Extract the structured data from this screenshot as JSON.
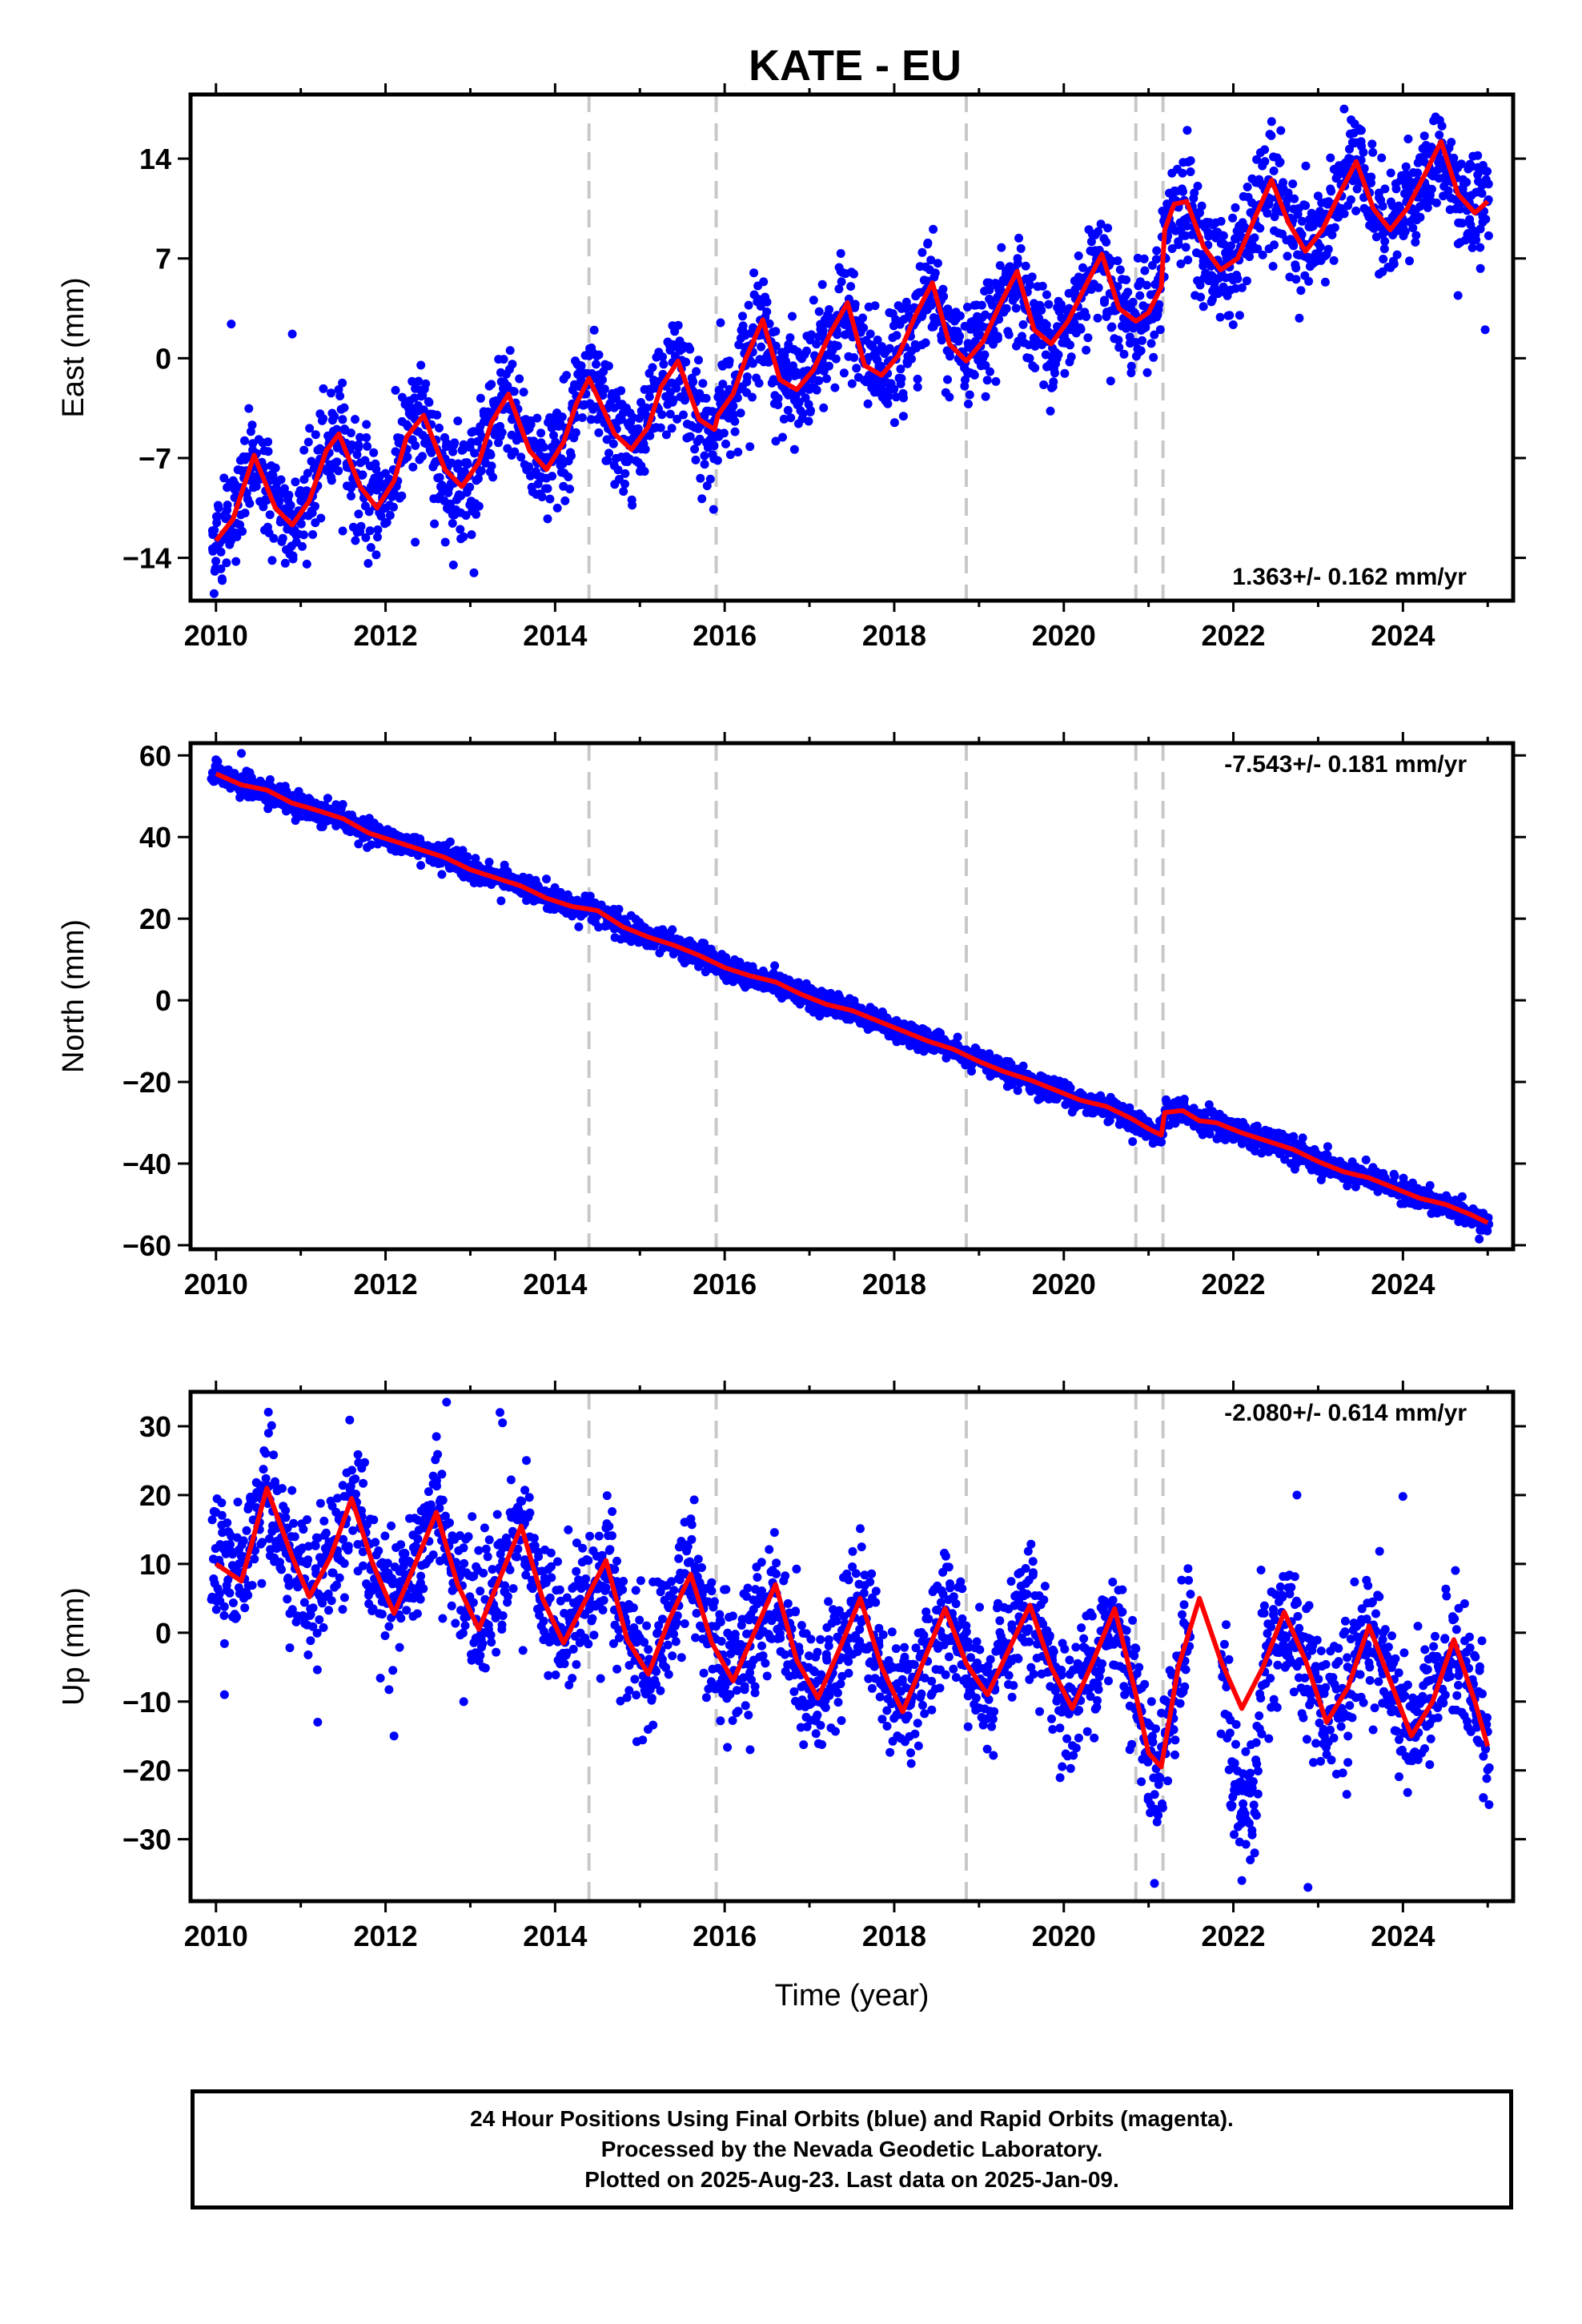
{
  "title": "KATE - EU",
  "colors": {
    "final_orbits": "#0000ff",
    "model_fit": "#ff0000",
    "event_lines": "#c8c8c8"
  },
  "footer": {
    "line1": "24 Hour Positions Using Final Orbits (blue) and Rapid Orbits (magenta).",
    "line2": "Processed by the Nevada Geodetic Laboratory.",
    "line3": "Plotted on 2025-Aug-23. Last data on 2025-Jan-09."
  },
  "chart_data": [
    {
      "type": "scatter",
      "ylabel": "East (mm)",
      "xlabel": "",
      "xlim": [
        2009.7,
        2025.3
      ],
      "ylim": [
        -17,
        18.5
      ],
      "xticks": [
        2010,
        2012,
        2014,
        2016,
        2018,
        2020,
        2022,
        2024
      ],
      "yticks": [
        -14,
        -7,
        0,
        7,
        14
      ],
      "rate_label": "1.363+/- 0.162 mm/yr",
      "rate_position": "bottom-right",
      "event_lines": [
        2014.4,
        2015.9,
        2018.85,
        2020.85,
        2021.17
      ],
      "model": {
        "name": "fit",
        "color": "#ff0000",
        "x": [
          2010.0,
          2010.2,
          2010.45,
          2010.7,
          2010.9,
          2011.1,
          2011.3,
          2011.45,
          2011.7,
          2011.9,
          2012.1,
          2012.25,
          2012.45,
          2012.7,
          2012.9,
          2013.1,
          2013.25,
          2013.45,
          2013.7,
          2013.9,
          2014.1,
          2014.25,
          2014.4,
          2014.7,
          2014.9,
          2015.1,
          2015.25,
          2015.45,
          2015.7,
          2015.88,
          2015.92,
          2016.1,
          2016.25,
          2016.45,
          2016.65,
          2016.85,
          2017.05,
          2017.25,
          2017.45,
          2017.65,
          2017.85,
          2018.05,
          2018.25,
          2018.45,
          2018.65,
          2018.85,
          2019.05,
          2019.25,
          2019.45,
          2019.65,
          2019.85,
          2020.05,
          2020.25,
          2020.45,
          2020.65,
          2020.85,
          2021.0,
          2021.15,
          2021.19,
          2021.3,
          2021.45,
          2021.65,
          2021.85,
          2022.05,
          2022.25,
          2022.45,
          2022.65,
          2022.85,
          2023.05,
          2023.25,
          2023.45,
          2023.65,
          2023.85,
          2024.05,
          2024.25,
          2024.45,
          2024.65,
          2024.85,
          2025.0
        ],
        "y": [
          -12.8,
          -11.3,
          -6.8,
          -10.5,
          -11.7,
          -10.0,
          -6.5,
          -5.3,
          -9.0,
          -10.5,
          -8.6,
          -5.5,
          -4.0,
          -7.8,
          -9.0,
          -7.3,
          -4.5,
          -2.5,
          -6.5,
          -7.8,
          -5.9,
          -3.2,
          -1.4,
          -5.3,
          -6.4,
          -4.8,
          -2.0,
          -0.2,
          -4.3,
          -5.0,
          -4.0,
          -2.5,
          0.0,
          2.7,
          -1.5,
          -2.2,
          -0.8,
          1.8,
          3.9,
          -0.5,
          -1.2,
          0.2,
          3.0,
          5.3,
          1.0,
          -0.2,
          1.2,
          3.8,
          6.1,
          2.0,
          1.0,
          2.6,
          5.0,
          7.3,
          3.5,
          2.6,
          3.2,
          5.0,
          9.0,
          10.8,
          11.0,
          7.8,
          6.2,
          7.0,
          9.8,
          12.5,
          9.5,
          7.5,
          9.0,
          11.5,
          13.8,
          10.5,
          9.0,
          10.5,
          12.8,
          15.2,
          11.5,
          10.2,
          11.0
        ]
      },
      "series": [
        {
          "name": "final orbits",
          "color": "#0000ff",
          "style": "dense",
          "scatter_mm": 1.8,
          "noise_mm": 1.2,
          "t_start": 2009.95,
          "t_end": 2025.02,
          "outliers": [
            [
              2010.18,
              2.4
            ],
            [
              2010.9,
              1.7
            ],
            [
              2012.8,
              -14.5
            ],
            [
              2012.35,
              -12.9
            ],
            [
              2021.95,
              6.4
            ],
            [
              2024.65,
              4.4
            ],
            [
              2024.97,
              2.0
            ]
          ]
        }
      ]
    },
    {
      "type": "scatter",
      "ylabel": "North (mm)",
      "xlabel": "",
      "xlim": [
        2009.7,
        2025.3
      ],
      "ylim": [
        -61,
        63
      ],
      "xticks": [
        2010,
        2012,
        2014,
        2016,
        2018,
        2020,
        2022,
        2024
      ],
      "yticks": [
        -60,
        -40,
        -20,
        0,
        20,
        40,
        60
      ],
      "rate_label": "-7.543+/- 0.181 mm/yr",
      "rate_position": "top-right",
      "event_lines": [
        2014.4,
        2015.9,
        2018.85,
        2020.85,
        2021.17
      ],
      "model": {
        "name": "fit",
        "color": "#ff0000",
        "x": [
          2010.0,
          2010.3,
          2010.6,
          2010.9,
          2011.2,
          2011.5,
          2011.8,
          2012.1,
          2012.4,
          2012.7,
          2013.0,
          2013.3,
          2013.6,
          2013.9,
          2014.2,
          2014.5,
          2014.8,
          2015.1,
          2015.4,
          2015.7,
          2016.0,
          2016.3,
          2016.6,
          2016.9,
          2017.2,
          2017.5,
          2017.8,
          2018.1,
          2018.4,
          2018.7,
          2019.0,
          2019.3,
          2019.6,
          2019.9,
          2020.2,
          2020.5,
          2020.8,
          2021.0,
          2021.15,
          2021.19,
          2021.4,
          2021.6,
          2021.8,
          2022.1,
          2022.4,
          2022.7,
          2023.0,
          2023.3,
          2023.6,
          2023.9,
          2024.2,
          2024.5,
          2024.8,
          2025.0
        ],
        "y": [
          55.5,
          52.8,
          51.5,
          48.3,
          46.5,
          44.5,
          41.0,
          39.0,
          37.0,
          35.0,
          32.0,
          30.0,
          28.0,
          25.0,
          23.0,
          22.0,
          18.0,
          15.5,
          13.5,
          11.0,
          8.0,
          6.0,
          4.5,
          1.5,
          -1.0,
          -2.5,
          -5.0,
          -7.5,
          -10.0,
          -12.0,
          -15.0,
          -17.5,
          -19.5,
          -22.0,
          -24.5,
          -26.0,
          -29.0,
          -31.5,
          -33.0,
          -27.5,
          -27.0,
          -29.5,
          -30.0,
          -32.5,
          -34.5,
          -36.5,
          -39.5,
          -42.0,
          -43.5,
          -46.0,
          -48.5,
          -50.0,
          -52.5,
          -54.5
        ]
      },
      "series": [
        {
          "name": "final orbits",
          "color": "#0000ff",
          "style": "dense",
          "scatter_mm": 1.4,
          "noise_mm": 1.0,
          "t_start": 2009.95,
          "t_end": 2025.02,
          "outliers": [
            [
              2010.3,
              60.5
            ],
            [
              2010.02,
              58.5
            ],
            [
              2024.9,
              -58.5
            ]
          ]
        }
      ]
    },
    {
      "type": "scatter",
      "ylabel": "Up (mm)",
      "xlabel": "Time (year)",
      "xlim": [
        2009.7,
        2025.3
      ],
      "ylim": [
        -39,
        35
      ],
      "xticks": [
        2010,
        2012,
        2014,
        2016,
        2018,
        2020,
        2022,
        2024
      ],
      "yticks": [
        -30,
        -20,
        -10,
        0,
        10,
        20,
        30
      ],
      "rate_label": "-2.080+/- 0.614 mm/yr",
      "rate_position": "top-right",
      "event_lines": [
        2014.4,
        2015.9,
        2018.85,
        2020.85,
        2021.17
      ],
      "model": {
        "name": "fit",
        "color": "#ff0000",
        "x": [
          2010.0,
          2010.3,
          2010.6,
          2010.9,
          2011.1,
          2011.35,
          2011.6,
          2011.85,
          2012.1,
          2012.35,
          2012.6,
          2012.85,
          2013.1,
          2013.35,
          2013.6,
          2013.85,
          2014.1,
          2014.35,
          2014.6,
          2014.85,
          2015.1,
          2015.35,
          2015.6,
          2015.85,
          2016.1,
          2016.35,
          2016.6,
          2016.85,
          2017.1,
          2017.35,
          2017.6,
          2017.85,
          2018.1,
          2018.35,
          2018.6,
          2018.85,
          2019.1,
          2019.35,
          2019.6,
          2019.85,
          2020.1,
          2020.35,
          2020.6,
          2020.85,
          2021.0,
          2021.15,
          2021.35,
          2021.6,
          2021.85,
          2022.1,
          2022.35,
          2022.6,
          2022.85,
          2023.1,
          2023.35,
          2023.6,
          2023.85,
          2024.1,
          2024.35,
          2024.6,
          2024.85,
          2025.0
        ],
        "y": [
          10.0,
          7.5,
          21.0,
          11.0,
          5.2,
          11.0,
          19.5,
          10.0,
          2.8,
          10.0,
          17.5,
          7.0,
          0.5,
          8.0,
          15.5,
          5.0,
          -1.5,
          4.5,
          10.5,
          -1.0,
          -6.0,
          2.0,
          8.5,
          -1.5,
          -7.0,
          0.0,
          7.0,
          -4.0,
          -9.5,
          -2.5,
          5.0,
          -5.0,
          -11.5,
          -4.0,
          3.5,
          -4.5,
          -9.0,
          -2.5,
          4.0,
          -5.0,
          -11.0,
          -4.0,
          3.5,
          -9.0,
          -17.5,
          -19.5,
          -5.0,
          5.0,
          -4.0,
          -11.0,
          -5.0,
          3.0,
          -4.0,
          -13.0,
          -8.0,
          1.0,
          -7.0,
          -15.0,
          -10.0,
          -1.0,
          -10.0,
          -16.5
        ]
      },
      "series": [
        {
          "name": "final orbits",
          "color": "#0000ff",
          "style": "dense",
          "scatter_mm": 4.5,
          "noise_mm": 3.5,
          "t_start": 2009.95,
          "t_end": 2025.02,
          "gap_offsets": [
            [
              2021.5,
              2021.85,
              0
            ],
            [
              2021.95,
              2022.3,
              -14
            ]
          ],
          "outliers": [
            [
              2012.72,
              33.5
            ],
            [
              2013.35,
              32.0
            ],
            [
              2013.38,
              30.5
            ],
            [
              2010.62,
              29.0
            ],
            [
              2012.6,
              28.5
            ],
            [
              2022.75,
              20.0
            ],
            [
              2024.0,
              19.8
            ],
            [
              2022.88,
              -37.0
            ],
            [
              2021.1,
              -27.5
            ],
            [
              2010.1,
              -9.0
            ],
            [
              2011.2,
              -13.0
            ],
            [
              2012.1,
              -15.0
            ],
            [
              2016.3,
              -17.0
            ],
            [
              2018.2,
              -19.0
            ],
            [
              2022.1,
              -36.0
            ],
            [
              2022.2,
              -33.0
            ],
            [
              2024.95,
              -24.0
            ]
          ]
        }
      ]
    }
  ]
}
